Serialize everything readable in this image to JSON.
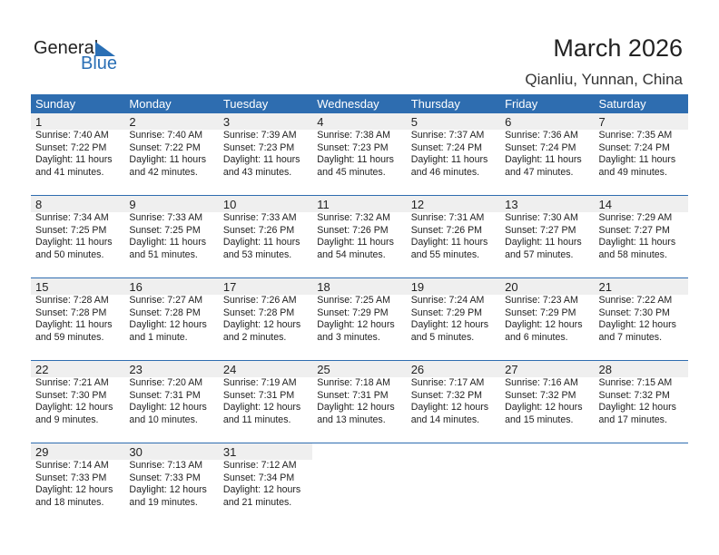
{
  "logo": {
    "text1": "General",
    "text2": "Blue"
  },
  "title": "March 2026",
  "location": "Qianliu, Yunnan, China",
  "colors": {
    "header": "#2e6db0",
    "brand": "#2a6fb5"
  },
  "weekdays": [
    "Sunday",
    "Monday",
    "Tuesday",
    "Wednesday",
    "Thursday",
    "Friday",
    "Saturday"
  ],
  "weeks": [
    [
      {
        "day": "1",
        "sunrise": "Sunrise: 7:40 AM",
        "sunset": "Sunset: 7:22 PM",
        "daylight1": "Daylight: 11 hours",
        "daylight2": "and 41 minutes."
      },
      {
        "day": "2",
        "sunrise": "Sunrise: 7:40 AM",
        "sunset": "Sunset: 7:22 PM",
        "daylight1": "Daylight: 11 hours",
        "daylight2": "and 42 minutes."
      },
      {
        "day": "3",
        "sunrise": "Sunrise: 7:39 AM",
        "sunset": "Sunset: 7:23 PM",
        "daylight1": "Daylight: 11 hours",
        "daylight2": "and 43 minutes."
      },
      {
        "day": "4",
        "sunrise": "Sunrise: 7:38 AM",
        "sunset": "Sunset: 7:23 PM",
        "daylight1": "Daylight: 11 hours",
        "daylight2": "and 45 minutes."
      },
      {
        "day": "5",
        "sunrise": "Sunrise: 7:37 AM",
        "sunset": "Sunset: 7:24 PM",
        "daylight1": "Daylight: 11 hours",
        "daylight2": "and 46 minutes."
      },
      {
        "day": "6",
        "sunrise": "Sunrise: 7:36 AM",
        "sunset": "Sunset: 7:24 PM",
        "daylight1": "Daylight: 11 hours",
        "daylight2": "and 47 minutes."
      },
      {
        "day": "7",
        "sunrise": "Sunrise: 7:35 AM",
        "sunset": "Sunset: 7:24 PM",
        "daylight1": "Daylight: 11 hours",
        "daylight2": "and 49 minutes."
      }
    ],
    [
      {
        "day": "8",
        "sunrise": "Sunrise: 7:34 AM",
        "sunset": "Sunset: 7:25 PM",
        "daylight1": "Daylight: 11 hours",
        "daylight2": "and 50 minutes."
      },
      {
        "day": "9",
        "sunrise": "Sunrise: 7:33 AM",
        "sunset": "Sunset: 7:25 PM",
        "daylight1": "Daylight: 11 hours",
        "daylight2": "and 51 minutes."
      },
      {
        "day": "10",
        "sunrise": "Sunrise: 7:33 AM",
        "sunset": "Sunset: 7:26 PM",
        "daylight1": "Daylight: 11 hours",
        "daylight2": "and 53 minutes."
      },
      {
        "day": "11",
        "sunrise": "Sunrise: 7:32 AM",
        "sunset": "Sunset: 7:26 PM",
        "daylight1": "Daylight: 11 hours",
        "daylight2": "and 54 minutes."
      },
      {
        "day": "12",
        "sunrise": "Sunrise: 7:31 AM",
        "sunset": "Sunset: 7:26 PM",
        "daylight1": "Daylight: 11 hours",
        "daylight2": "and 55 minutes."
      },
      {
        "day": "13",
        "sunrise": "Sunrise: 7:30 AM",
        "sunset": "Sunset: 7:27 PM",
        "daylight1": "Daylight: 11 hours",
        "daylight2": "and 57 minutes."
      },
      {
        "day": "14",
        "sunrise": "Sunrise: 7:29 AM",
        "sunset": "Sunset: 7:27 PM",
        "daylight1": "Daylight: 11 hours",
        "daylight2": "and 58 minutes."
      }
    ],
    [
      {
        "day": "15",
        "sunrise": "Sunrise: 7:28 AM",
        "sunset": "Sunset: 7:28 PM",
        "daylight1": "Daylight: 11 hours",
        "daylight2": "and 59 minutes."
      },
      {
        "day": "16",
        "sunrise": "Sunrise: 7:27 AM",
        "sunset": "Sunset: 7:28 PM",
        "daylight1": "Daylight: 12 hours",
        "daylight2": "and 1 minute."
      },
      {
        "day": "17",
        "sunrise": "Sunrise: 7:26 AM",
        "sunset": "Sunset: 7:28 PM",
        "daylight1": "Daylight: 12 hours",
        "daylight2": "and 2 minutes."
      },
      {
        "day": "18",
        "sunrise": "Sunrise: 7:25 AM",
        "sunset": "Sunset: 7:29 PM",
        "daylight1": "Daylight: 12 hours",
        "daylight2": "and 3 minutes."
      },
      {
        "day": "19",
        "sunrise": "Sunrise: 7:24 AM",
        "sunset": "Sunset: 7:29 PM",
        "daylight1": "Daylight: 12 hours",
        "daylight2": "and 5 minutes."
      },
      {
        "day": "20",
        "sunrise": "Sunrise: 7:23 AM",
        "sunset": "Sunset: 7:29 PM",
        "daylight1": "Daylight: 12 hours",
        "daylight2": "and 6 minutes."
      },
      {
        "day": "21",
        "sunrise": "Sunrise: 7:22 AM",
        "sunset": "Sunset: 7:30 PM",
        "daylight1": "Daylight: 12 hours",
        "daylight2": "and 7 minutes."
      }
    ],
    [
      {
        "day": "22",
        "sunrise": "Sunrise: 7:21 AM",
        "sunset": "Sunset: 7:30 PM",
        "daylight1": "Daylight: 12 hours",
        "daylight2": "and 9 minutes."
      },
      {
        "day": "23",
        "sunrise": "Sunrise: 7:20 AM",
        "sunset": "Sunset: 7:31 PM",
        "daylight1": "Daylight: 12 hours",
        "daylight2": "and 10 minutes."
      },
      {
        "day": "24",
        "sunrise": "Sunrise: 7:19 AM",
        "sunset": "Sunset: 7:31 PM",
        "daylight1": "Daylight: 12 hours",
        "daylight2": "and 11 minutes."
      },
      {
        "day": "25",
        "sunrise": "Sunrise: 7:18 AM",
        "sunset": "Sunset: 7:31 PM",
        "daylight1": "Daylight: 12 hours",
        "daylight2": "and 13 minutes."
      },
      {
        "day": "26",
        "sunrise": "Sunrise: 7:17 AM",
        "sunset": "Sunset: 7:32 PM",
        "daylight1": "Daylight: 12 hours",
        "daylight2": "and 14 minutes."
      },
      {
        "day": "27",
        "sunrise": "Sunrise: 7:16 AM",
        "sunset": "Sunset: 7:32 PM",
        "daylight1": "Daylight: 12 hours",
        "daylight2": "and 15 minutes."
      },
      {
        "day": "28",
        "sunrise": "Sunrise: 7:15 AM",
        "sunset": "Sunset: 7:32 PM",
        "daylight1": "Daylight: 12 hours",
        "daylight2": "and 17 minutes."
      }
    ],
    [
      {
        "day": "29",
        "sunrise": "Sunrise: 7:14 AM",
        "sunset": "Sunset: 7:33 PM",
        "daylight1": "Daylight: 12 hours",
        "daylight2": "and 18 minutes."
      },
      {
        "day": "30",
        "sunrise": "Sunrise: 7:13 AM",
        "sunset": "Sunset: 7:33 PM",
        "daylight1": "Daylight: 12 hours",
        "daylight2": "and 19 minutes."
      },
      {
        "day": "31",
        "sunrise": "Sunrise: 7:12 AM",
        "sunset": "Sunset: 7:34 PM",
        "daylight1": "Daylight: 12 hours",
        "daylight2": "and 21 minutes."
      }
    ]
  ]
}
